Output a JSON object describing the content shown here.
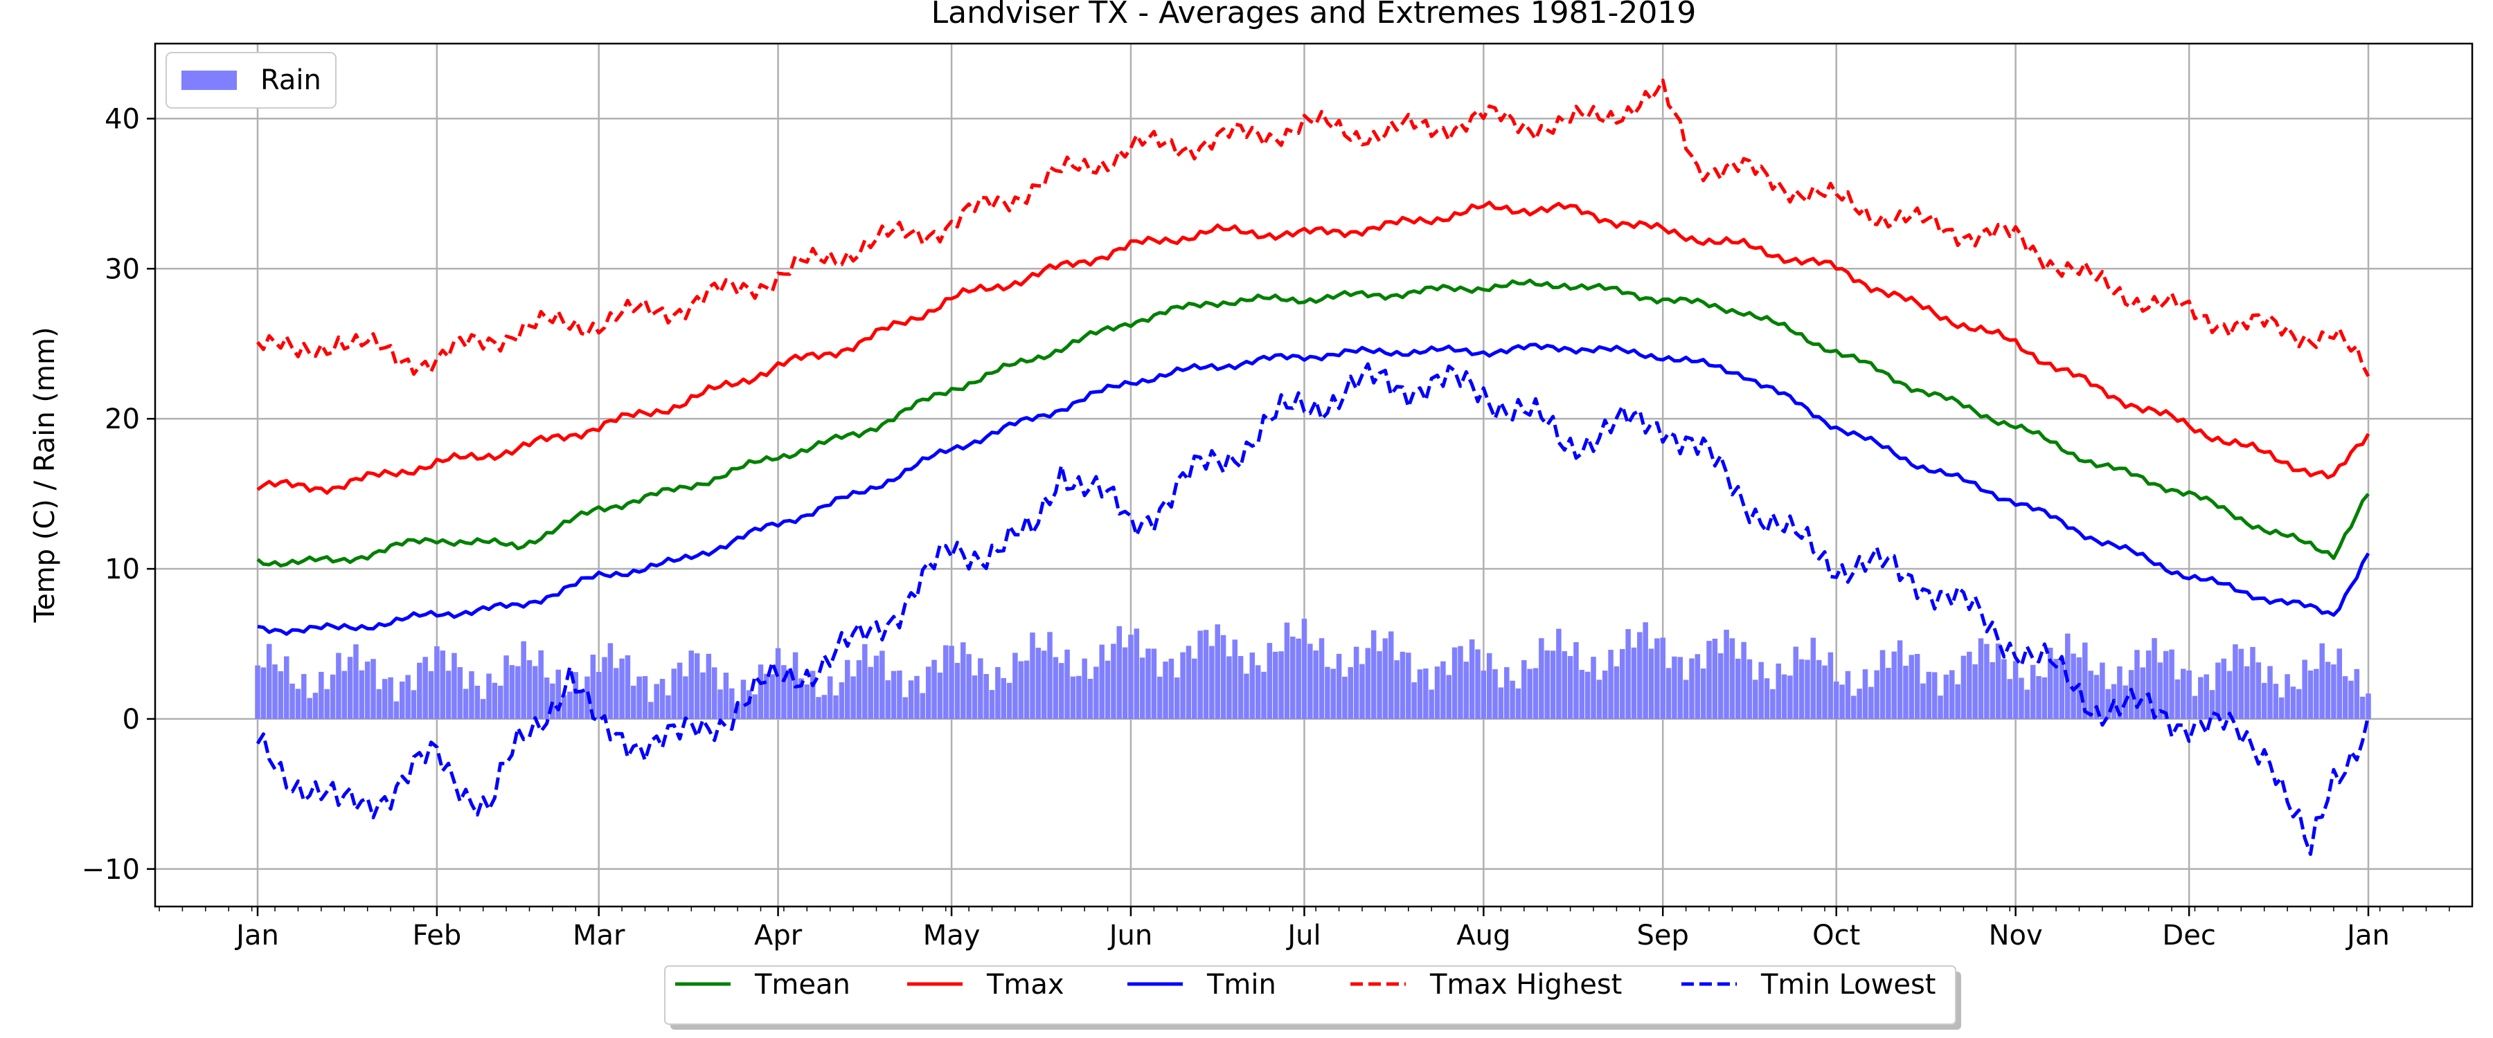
{
  "chart_data": {
    "type": "line",
    "title": "Landviser TX - Averages and Extremes 1981-2019",
    "ylabel": "Temp (C) / Rain (mm)",
    "xlabel": "",
    "ylim": [
      -12.5,
      45
    ],
    "yticks": [
      -10,
      0,
      10,
      20,
      30,
      40
    ],
    "xticks": [
      "Jan",
      "Feb",
      "Mar",
      "Apr",
      "May",
      "Jun",
      "Jul",
      "Aug",
      "Sep",
      "Oct",
      "Nov",
      "Dec",
      "Jan"
    ],
    "grid": true,
    "legend_top": {
      "placement": "top-left",
      "entries": [
        "Rain"
      ]
    },
    "legend_bottom": {
      "placement": "bottom-center",
      "entries": [
        "Tmean",
        "Tmax",
        "Tmin",
        "Tmax Highest",
        "Tmin Lowest"
      ]
    },
    "x_unit": "day of year (1 = Jan 1, 366 = next Jan 1)",
    "colors": {
      "Tmean": "#008000",
      "Tmax": "#ff0000",
      "Tmin": "#0000ff",
      "Tmax Highest": "#ff0000",
      "Tmin Lowest": "#0000ff",
      "Rain": "#8080ff"
    },
    "series": [
      {
        "name": "Tmean",
        "style": "solid",
        "x": [
          1,
          15,
          25,
          32,
          46,
          60,
          74,
          91,
          105,
          121,
          135,
          152,
          166,
          182,
          196,
          213,
          227,
          244,
          258,
          274,
          288,
          305,
          319,
          335,
          349,
          360,
          366
        ],
        "values": [
          10.5,
          10.5,
          11.5,
          12.0,
          11.5,
          14.0,
          15.3,
          17.5,
          19.0,
          22.0,
          24.0,
          26.5,
          27.8,
          28.0,
          28.3,
          28.8,
          29.0,
          28.0,
          27.2,
          24.5,
          22.0,
          19.5,
          17.0,
          15.0,
          12.5,
          11.0,
          15.0
        ]
      },
      {
        "name": "Tmax",
        "style": "solid",
        "x": [
          1,
          15,
          25,
          32,
          46,
          60,
          74,
          91,
          105,
          121,
          135,
          152,
          166,
          182,
          196,
          213,
          227,
          244,
          258,
          274,
          288,
          305,
          319,
          335,
          349,
          360,
          366
        ],
        "values": [
          15.5,
          15.5,
          16.5,
          17.0,
          18.0,
          19.5,
          21.0,
          23.5,
          25.0,
          28.0,
          29.5,
          31.5,
          32.5,
          32.3,
          32.8,
          34.0,
          34.0,
          32.5,
          31.5,
          30.0,
          27.5,
          25.0,
          22.0,
          19.5,
          17.5,
          16.0,
          19.0
        ]
      },
      {
        "name": "Tmin",
        "style": "solid",
        "x": [
          1,
          15,
          25,
          32,
          46,
          60,
          74,
          91,
          105,
          121,
          135,
          152,
          166,
          182,
          196,
          213,
          227,
          244,
          258,
          274,
          288,
          305,
          319,
          335,
          349,
          360,
          366
        ],
        "values": [
          6.0,
          6.0,
          6.5,
          7.0,
          7.5,
          9.5,
          10.5,
          13.0,
          15.0,
          18.0,
          20.0,
          22.5,
          23.5,
          24.2,
          24.5,
          24.5,
          24.8,
          24.2,
          23.0,
          19.5,
          17.0,
          14.5,
          12.0,
          9.5,
          8.0,
          7.0,
          11.0
        ]
      },
      {
        "name": "Tmax Highest",
        "style": "dashed",
        "x": [
          1,
          8,
          15,
          25,
          32,
          46,
          60,
          74,
          91,
          105,
          121,
          135,
          152,
          166,
          182,
          196,
          213,
          227,
          244,
          250,
          258,
          274,
          288,
          305,
          319,
          335,
          349,
          360,
          366
        ],
        "values": [
          25.5,
          24.0,
          25.5,
          24.0,
          24.0,
          26.0,
          26.5,
          27.5,
          29.5,
          31.5,
          33.0,
          35.5,
          38.0,
          38.5,
          39.5,
          39.0,
          40.0,
          39.5,
          41.5,
          37.0,
          36.5,
          34.5,
          33.0,
          32.0,
          29.0,
          27.0,
          26.0,
          25.5,
          23.0
        ]
      },
      {
        "name": "Tmin Lowest",
        "style": "dashed",
        "x": [
          1,
          8,
          15,
          25,
          32,
          41,
          46,
          55,
          60,
          74,
          91,
          105,
          121,
          135,
          140,
          152,
          166,
          182,
          196,
          213,
          227,
          244,
          255,
          266,
          274,
          288,
          305,
          319,
          335,
          349,
          356,
          360,
          366
        ],
        "values": [
          -2.0,
          -4.0,
          -6.0,
          -4.5,
          -2.5,
          -6.0,
          -2.0,
          3.0,
          -1.0,
          -1.5,
          2.5,
          5.0,
          11.0,
          12.0,
          17.0,
          13.0,
          17.0,
          21.0,
          22.5,
          22.0,
          18.5,
          20.0,
          16.0,
          12.0,
          10.5,
          9.5,
          5.0,
          1.0,
          0.0,
          -2.0,
          -9.5,
          -4.0,
          0.0
        ]
      }
    ],
    "rain": {
      "name": "Rain",
      "x": [
        1,
        32,
        60,
        91,
        121,
        152,
        182,
        213,
        244,
        274,
        305,
        335,
        366
      ],
      "values": [
        3.0,
        3.2,
        3.2,
        2.8,
        3.5,
        4.5,
        4.8,
        3.5,
        4.8,
        3.2,
        3.8,
        3.5,
        3.0
      ]
    }
  }
}
